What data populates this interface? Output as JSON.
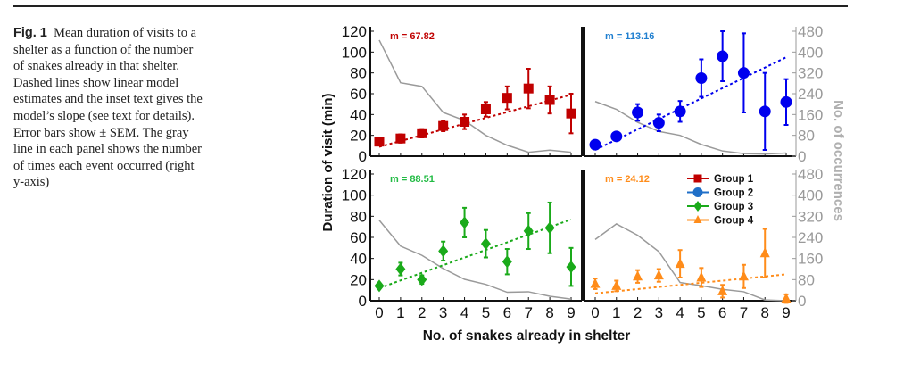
{
  "caption": {
    "label": "Fig. 1",
    "text": "Mean duration of visits to a shelter as a function of the number of snakes already in that shelter. Dashed lines show linear model estimates and the inset text gives the model’s slope (see text for details). Error bars show ± SEM. The gray line in each panel shows the number of times each event occurred (right y-axis)"
  },
  "chart_data": {
    "type": "scatter",
    "xlabel": "No. of snakes already in shelter",
    "ylabel": "Duration of visit (min)",
    "y2label": "No. of occurrences",
    "x": [
      0,
      1,
      2,
      3,
      4,
      5,
      6,
      7,
      8,
      9
    ],
    "x_ticks": [
      "0",
      "1",
      "2",
      "3",
      "4",
      "5",
      "6",
      "7",
      "8",
      "9"
    ],
    "ylim": [
      0,
      120
    ],
    "y_ticks": [
      "0",
      "20",
      "40",
      "60",
      "80",
      "100",
      "120"
    ],
    "y2lim": [
      0,
      480
    ],
    "y2_ticks": [
      "0",
      "80",
      "160",
      "240",
      "320",
      "400",
      "480"
    ],
    "legend": {
      "placement": "bottom-right panel, top",
      "entries": [
        "Group 1",
        "Group 2",
        "Group 3",
        "Group 4"
      ]
    },
    "series": [
      {
        "name": "Group 1",
        "color": "#c00000",
        "marker": "square",
        "slope_label": "m = 67.82",
        "values": [
          14,
          17,
          22,
          29,
          33,
          45,
          56,
          65,
          54,
          41
        ],
        "sem": [
          3,
          4,
          4,
          5,
          7,
          7,
          11,
          19,
          13,
          19
        ],
        "trend": [
          9,
          59
        ],
        "occurrences": [
          446,
          282,
          268,
          168,
          137,
          80,
          42,
          15,
          23,
          15
        ]
      },
      {
        "name": "Group 2",
        "color": "#0000ee",
        "legend_color": "#1f6fc8",
        "label_color": "#1f7fd0",
        "marker": "circle",
        "slope_label": "m = 113.16",
        "values": [
          11,
          19,
          42,
          32,
          43,
          75,
          96,
          80,
          43,
          52
        ],
        "sem": [
          3,
          3,
          8,
          8,
          10,
          18,
          24,
          38,
          37,
          22
        ],
        "trend": [
          6,
          95
        ],
        "occurrences": [
          210,
          180,
          130,
          95,
          80,
          45,
          20,
          10,
          8,
          12
        ]
      },
      {
        "name": "Group 3",
        "color": "#1aaa1a",
        "label_color": "#22bb44",
        "marker": "diamond",
        "slope_label": "m = 88.51",
        "values": [
          14,
          30,
          20,
          47,
          74,
          54,
          37,
          66,
          69,
          32
        ],
        "sem": [
          2,
          6,
          4,
          9,
          14,
          13,
          12,
          17,
          24,
          18
        ],
        "trend": [
          12,
          77
        ],
        "occurrences": [
          305,
          207,
          172,
          122,
          81,
          62,
          32,
          34,
          17,
          6
        ]
      },
      {
        "name": "Group 4",
        "color": "#ff8c1a",
        "marker": "triangle",
        "slope_label": "m = 24.12",
        "values": [
          16,
          14,
          23,
          24,
          35,
          22,
          9,
          23,
          45,
          2
        ],
        "sem": [
          5,
          5,
          6,
          6,
          13,
          9,
          6,
          11,
          23,
          4
        ],
        "trend": [
          7,
          25
        ],
        "occurrences": [
          232,
          291,
          248,
          186,
          69,
          57,
          43,
          34,
          3,
          0
        ]
      }
    ]
  }
}
